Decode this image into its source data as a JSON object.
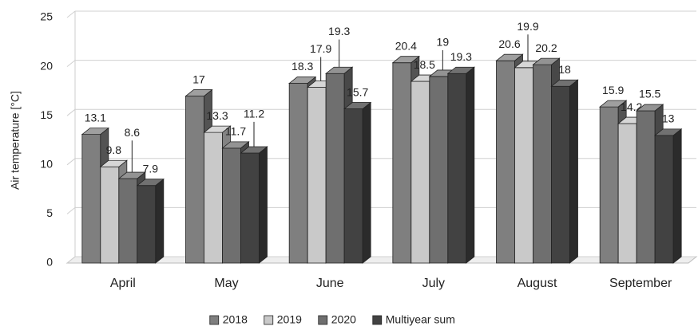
{
  "chart_data": {
    "type": "bar3d",
    "y_label": "Air temperature [°C]",
    "categories": [
      "April",
      "May",
      "June",
      "July",
      "August",
      "September"
    ],
    "series": [
      {
        "name": "2018",
        "color": "#7f7f7f",
        "values": [
          13.1,
          17,
          18.3,
          20.4,
          20.6,
          15.9
        ]
      },
      {
        "name": "2019",
        "color": "#c9c9c9",
        "values": [
          9.8,
          13.3,
          17.9,
          18.5,
          19.9,
          14.2
        ]
      },
      {
        "name": "2020",
        "color": "#6f6f6f",
        "values": [
          8.6,
          11.7,
          19.3,
          19,
          20.2,
          15.5
        ]
      },
      {
        "name": "Multiyear sum",
        "color": "#424242",
        "values": [
          7.9,
          11.2,
          15.7,
          19.3,
          18,
          13
        ]
      }
    ],
    "ylim": [
      0,
      25
    ],
    "yticks": [
      0,
      5,
      10,
      15,
      20,
      25
    ],
    "grid": true,
    "legend": "bottom"
  }
}
